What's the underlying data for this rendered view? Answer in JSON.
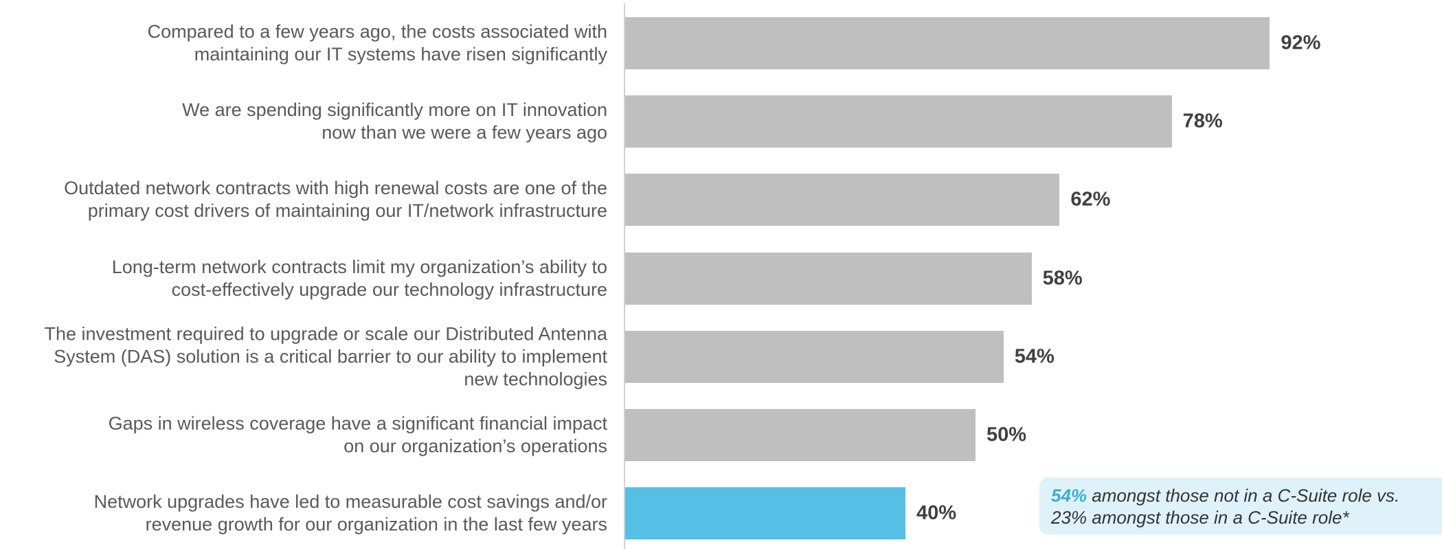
{
  "chart_data": {
    "type": "bar",
    "orientation": "horizontal",
    "categories": [
      "Compared to a few years ago, the costs associated with\nmaintaining our IT systems have risen significantly",
      "We are spending significantly more on IT innovation\nnow than we were a few years ago",
      "Outdated network contracts with high renewal costs are one of the\nprimary cost drivers of maintaining our IT/network infrastructure",
      "Long-term network contracts limit my organization’s ability to\ncost-effectively upgrade our technology infrastructure",
      "The investment required to upgrade or scale our Distributed Antenna\nSystem (DAS) solution is a critical barrier to our ability to implement\nnew technologies",
      "Gaps in wireless coverage have a significant financial impact\non our organization’s operations",
      "Network upgrades have led to measurable cost savings and/or\nrevenue growth for our organization in the last few years"
    ],
    "values": [
      92,
      78,
      62,
      58,
      54,
      50,
      40
    ],
    "value_labels": [
      "92%",
      "78%",
      "62%",
      "58%",
      "54%",
      "50%",
      "40%"
    ],
    "colors": [
      "#bfbfbf",
      "#bfbfbf",
      "#bfbfbf",
      "#bfbfbf",
      "#bfbfbf",
      "#bfbfbf",
      "#56bfe6"
    ],
    "xlim": [
      0,
      100
    ],
    "annotation": {
      "highlight": "54%",
      "text": " amongst those not in a C-Suite role vs.\n23% amongst those in a C-Suite role*"
    }
  }
}
